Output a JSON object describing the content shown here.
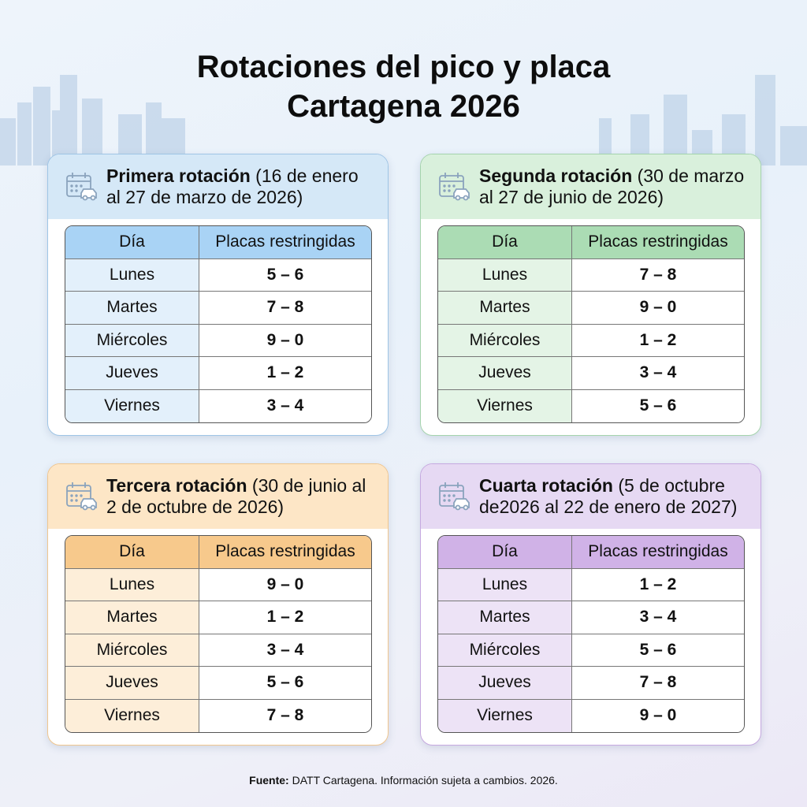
{
  "title_line1": "Rotaciones del pico y placa",
  "title_line2": "Cartagena 2026",
  "columns": {
    "day": "Día",
    "plates": "Placas restringidas"
  },
  "cards": [
    {
      "name": "Primera rotación",
      "range": " (16 de enero al 27 de marzo de 2026)",
      "colors": {
        "border": "#9fc5e6",
        "head": "#d5e8f7",
        "th": "#a9d3f5",
        "day": "#e3f0fb"
      },
      "rows": [
        {
          "day": "Lunes",
          "plates": "5 – 6"
        },
        {
          "day": "Martes",
          "plates": "7 – 8"
        },
        {
          "day": "Miércoles",
          "plates": "9 – 0"
        },
        {
          "day": "Jueves",
          "plates": "1 – 2"
        },
        {
          "day": "Viernes",
          "plates": "3 – 4"
        }
      ]
    },
    {
      "name": "Segunda rotación",
      "range": " (30 de marzo al 27 de junio de 2026)",
      "colors": {
        "border": "#a5d4ad",
        "head": "#d9f0dc",
        "th": "#abdcb4",
        "day": "#e4f4e6"
      },
      "rows": [
        {
          "day": "Lunes",
          "plates": "7 – 8"
        },
        {
          "day": "Martes",
          "plates": "9 – 0"
        },
        {
          "day": "Miércoles",
          "plates": "1 – 2"
        },
        {
          "day": "Jueves",
          "plates": "3 – 4"
        },
        {
          "day": "Viernes",
          "plates": "5 – 6"
        }
      ]
    },
    {
      "name": "Tercera rotación",
      "range": " (30 de junio al 2 de octubre de 2026)",
      "colors": {
        "border": "#f0c68e",
        "head": "#fde6c6",
        "th": "#f7c98c",
        "day": "#fdeed9"
      },
      "rows": [
        {
          "day": "Lunes",
          "plates": "9 – 0"
        },
        {
          "day": "Martes",
          "plates": "1 – 2"
        },
        {
          "day": "Miércoles",
          "plates": "3 – 4"
        },
        {
          "day": "Jueves",
          "plates": "5 – 6"
        },
        {
          "day": "Viernes",
          "plates": "7 – 8"
        }
      ]
    },
    {
      "name": "Cuarta rotación",
      "range": " (5 de octubre de2026 al 22 de enero de 2027)",
      "colors": {
        "border": "#c6a9e0",
        "head": "#e6d9f3",
        "th": "#d0b2e7",
        "day": "#ede3f6"
      },
      "rows": [
        {
          "day": "Lunes",
          "plates": "1 – 2"
        },
        {
          "day": "Martes",
          "plates": "3 – 4"
        },
        {
          "day": "Miércoles",
          "plates": "5 – 6"
        },
        {
          "day": "Jueves",
          "plates": "7 – 8"
        },
        {
          "day": "Viernes",
          "plates": "9 – 0"
        }
      ]
    }
  ],
  "footer": {
    "label": "Fuente:",
    "text": " DATT Cartagena. Información sujeta a cambios. 2026."
  },
  "icons": {
    "card": "calendar-car-icon"
  }
}
